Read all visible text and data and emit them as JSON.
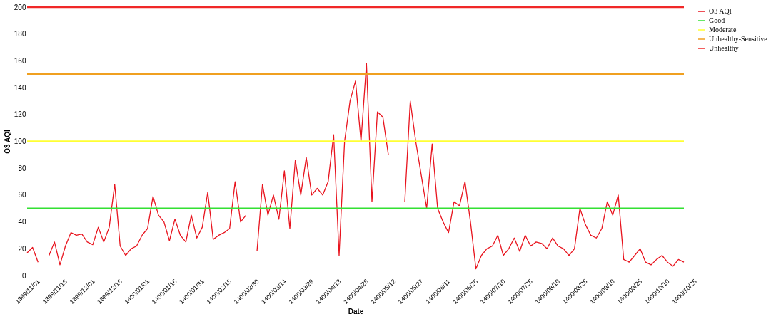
{
  "chart_data": {
    "type": "line",
    "xlabel": "Date",
    "ylabel": "O3 AQI",
    "categories": [
      "1399/11/01",
      null,
      null,
      null,
      null,
      "1399/11/16",
      null,
      null,
      null,
      null,
      "1399/12/01",
      null,
      null,
      null,
      null,
      "1399/12/16",
      null,
      null,
      null,
      null,
      "1400/01/01",
      null,
      null,
      null,
      null,
      "1400/01/16",
      null,
      null,
      null,
      null,
      "1400/01/31",
      null,
      null,
      null,
      null,
      "1400/02/15",
      null,
      null,
      null,
      null,
      "1400/02/30",
      null,
      null,
      null,
      null,
      "1400/03/14",
      null,
      null,
      null,
      null,
      "1400/03/29",
      null,
      null,
      null,
      null,
      "1400/04/13",
      null,
      null,
      null,
      null,
      "1400/04/28",
      null,
      null,
      null,
      null,
      "1400/05/12",
      null,
      null,
      null,
      null,
      "1400/05/27",
      null,
      null,
      null,
      null,
      "1400/06/11",
      null,
      null,
      null,
      null,
      "1400/06/26",
      null,
      null,
      null,
      null,
      "1400/07/10",
      null,
      null,
      null,
      null,
      "1400/07/25",
      null,
      null,
      null,
      null,
      "1400/08/10",
      null,
      null,
      null,
      null,
      "1400/08/25",
      null,
      null,
      null,
      null,
      "1400/09/10",
      null,
      null,
      null,
      null,
      "1400/09/25",
      null,
      null,
      null,
      null,
      "1400/10/10",
      null,
      null,
      null,
      null,
      "1400/10/25"
    ],
    "series": [
      {
        "name": "O3 AQI",
        "color": "#e8141e",
        "values": [
          17,
          21,
          10,
          null,
          15,
          25,
          8,
          22,
          32,
          30,
          31,
          25,
          23,
          36,
          25,
          36,
          68,
          22,
          15,
          20,
          22,
          30,
          35,
          59,
          45,
          40,
          26,
          42,
          30,
          25,
          45,
          28,
          36,
          62,
          27,
          30,
          32,
          35,
          70,
          40,
          45,
          null,
          18,
          68,
          45,
          60,
          42,
          78,
          35,
          86,
          60,
          88,
          60,
          65,
          60,
          70,
          105,
          15,
          100,
          130,
          145,
          100,
          158,
          55,
          122,
          118,
          90,
          null,
          null,
          55,
          130,
          100,
          75,
          50,
          98,
          50,
          40,
          32,
          55,
          52,
          70,
          40,
          5,
          15,
          20,
          22,
          30,
          15,
          20,
          28,
          18,
          30,
          22,
          25,
          24,
          20,
          28,
          22,
          20,
          15,
          20,
          50,
          38,
          30,
          28,
          35,
          55,
          45,
          60,
          12,
          10,
          15,
          20,
          10,
          8,
          12,
          15,
          10,
          7,
          12,
          10
        ]
      }
    ],
    "ref_lines": [
      {
        "axis": "y",
        "value": 50,
        "label": "Good",
        "color": "#33e033"
      },
      {
        "axis": "y",
        "value": 100,
        "label": "Moderate",
        "color": "#ffff33"
      },
      {
        "axis": "y",
        "value": 150,
        "label": "Unhealthy-Sensitive",
        "color": "#f0a020"
      },
      {
        "axis": "y",
        "value": 200,
        "label": "Unhealthy",
        "color": "#f02828"
      }
    ],
    "ylim": [
      0,
      200
    ],
    "yticks": [
      0,
      20,
      40,
      60,
      80,
      100,
      120,
      140,
      160,
      180,
      200
    ],
    "grid": false,
    "legend": "right",
    "line_style": "solid",
    "marker": "none"
  }
}
